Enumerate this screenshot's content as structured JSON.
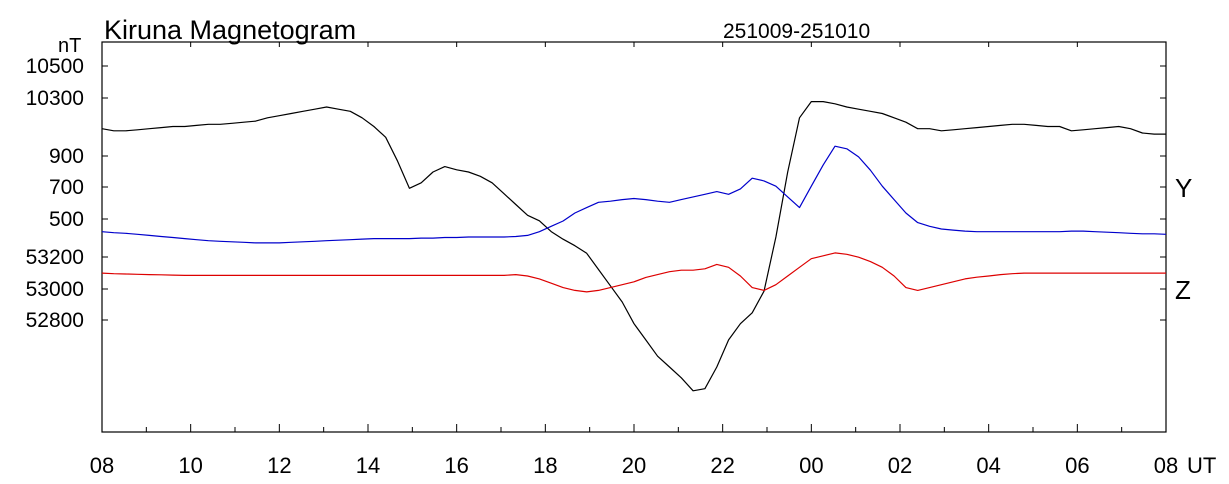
{
  "chart_data": {
    "type": "line",
    "title": "Kiruna Magnetogram",
    "subtitle": "251009-251010",
    "y_unit": "nT",
    "x_unit": "UT",
    "x_ticks": [
      "08",
      "10",
      "12",
      "14",
      "16",
      "18",
      "20",
      "22",
      "00",
      "02",
      "04",
      "06",
      "08"
    ],
    "y_tick_labels": [
      "10500",
      "10300",
      "900",
      "700",
      "500",
      "53200",
      "53000",
      "52800"
    ],
    "component_labels": [
      "Y",
      "Z"
    ],
    "grid": false,
    "series": [
      {
        "color": "#000000",
        "ylim": [
          10200,
          10560
        ],
        "values": [
          10480,
          10478,
          10478,
          10479,
          10480,
          10481,
          10482,
          10482,
          10483,
          10484,
          10484,
          10485,
          10486,
          10487,
          10490,
          10492,
          10494,
          10496,
          10498,
          10500,
          10498,
          10496,
          10490,
          10482,
          10472,
          10450,
          10425,
          10430,
          10440,
          10445,
          10442,
          10440,
          10436,
          10430,
          10420,
          10410,
          10400,
          10395,
          10385,
          10378,
          10372,
          10365,
          10350,
          10335,
          10320,
          10300,
          10285,
          10270,
          10260,
          10250,
          10238,
          10240,
          10260,
          10285,
          10300,
          10310,
          10330,
          10380,
          10440,
          10490,
          10505,
          10505,
          10503,
          10500,
          10498,
          10496,
          10494,
          10490,
          10486,
          10480,
          10480,
          10478,
          10479,
          10480,
          10481,
          10482,
          10483,
          10484,
          10484,
          10483,
          10482,
          10482,
          10478,
          10479,
          10480,
          10481,
          10482,
          10480,
          10476,
          10475,
          10475
        ]
      },
      {
        "color": "#0000cc",
        "ylim": [
          300,
          1030
        ],
        "values": [
          675,
          673,
          672,
          670,
          668,
          666,
          664,
          662,
          660,
          658,
          657,
          656,
          655,
          654,
          654,
          654,
          655,
          656,
          657,
          658,
          659,
          660,
          661,
          662,
          662,
          662,
          662,
          663,
          663,
          664,
          664,
          665,
          665,
          665,
          665,
          666,
          668,
          675,
          685,
          695,
          710,
          720,
          730,
          732,
          735,
          737,
          735,
          732,
          730,
          735,
          740,
          745,
          750,
          745,
          755,
          775,
          770,
          760,
          740,
          720,
          760,
          800,
          835,
          830,
          815,
          790,
          760,
          735,
          710,
          692,
          685,
          680,
          678,
          676,
          675,
          675,
          675,
          675,
          675,
          675,
          675,
          675,
          676,
          676,
          675,
          674,
          673,
          672,
          671,
          671,
          670
        ]
      },
      {
        "color": "#dd0000",
        "ylim": [
          52300,
          53650
        ],
        "values": [
          52850,
          52848,
          52847,
          52846,
          52845,
          52844,
          52843,
          52842,
          52842,
          52842,
          52842,
          52842,
          52842,
          52842,
          52842,
          52842,
          52842,
          52842,
          52842,
          52842,
          52842,
          52842,
          52842,
          52842,
          52842,
          52842,
          52842,
          52842,
          52842,
          52842,
          52842,
          52842,
          52842,
          52842,
          52842,
          52845,
          52840,
          52830,
          52815,
          52800,
          52790,
          52785,
          52790,
          52800,
          52810,
          52820,
          52835,
          52845,
          52855,
          52860,
          52860,
          52865,
          52880,
          52870,
          52840,
          52800,
          52790,
          52810,
          52840,
          52870,
          52900,
          52910,
          52920,
          52915,
          52905,
          52890,
          52870,
          52840,
          52800,
          52790,
          52800,
          52810,
          52820,
          52830,
          52836,
          52840,
          52845,
          52848,
          52850,
          52850,
          52850,
          52850,
          52850,
          52850,
          52850,
          52850,
          52850,
          52850,
          52850,
          52850,
          52850
        ]
      }
    ]
  }
}
